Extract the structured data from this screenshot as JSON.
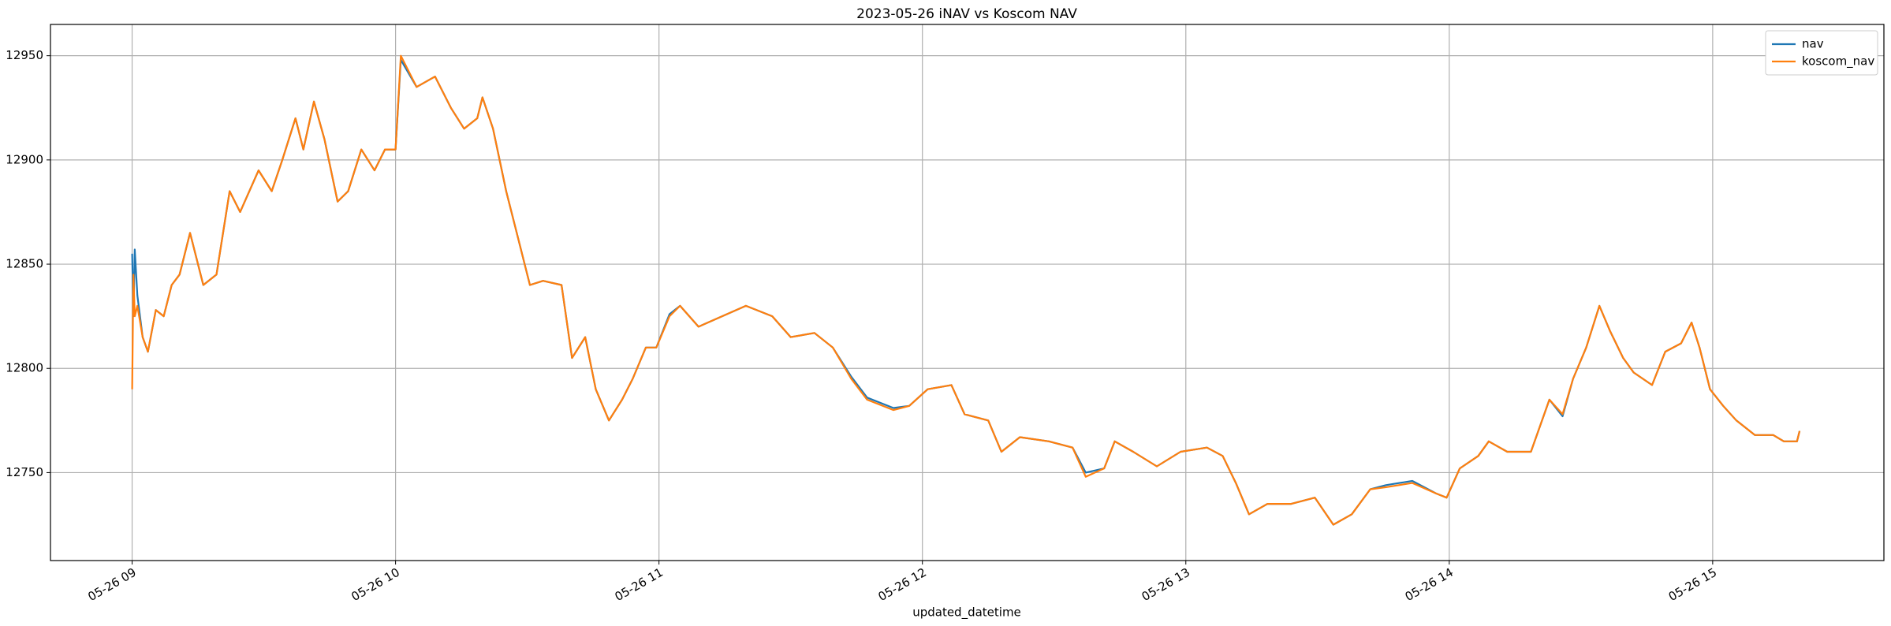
{
  "chart_data": {
    "type": "line",
    "title": "2023-05-26 iNAV vs Koscom NAV",
    "x_label": "updated_datetime",
    "x": [
      9.0,
      9.005,
      9.01,
      9.02,
      9.04,
      9.06,
      9.09,
      9.12,
      9.15,
      9.18,
      9.22,
      9.27,
      9.32,
      9.37,
      9.41,
      9.48,
      9.53,
      9.57,
      9.62,
      9.65,
      9.69,
      9.73,
      9.78,
      9.82,
      9.87,
      9.92,
      9.96,
      10.0,
      10.02,
      10.08,
      10.15,
      10.21,
      10.26,
      10.31,
      10.33,
      10.37,
      10.42,
      10.46,
      10.51,
      10.56,
      10.63,
      10.67,
      10.72,
      10.76,
      10.81,
      10.86,
      10.9,
      10.95,
      10.99,
      11.04,
      11.08,
      11.15,
      11.24,
      11.33,
      11.43,
      11.5,
      11.59,
      11.66,
      11.73,
      11.79,
      11.89,
      11.95,
      12.02,
      12.11,
      12.16,
      12.25,
      12.3,
      12.37,
      12.48,
      12.57,
      12.62,
      12.69,
      12.73,
      12.8,
      12.89,
      12.98,
      13.08,
      13.14,
      13.19,
      13.24,
      13.31,
      13.4,
      13.49,
      13.56,
      13.63,
      13.7,
      13.76,
      13.86,
      13.95,
      13.99,
      14.04,
      14.11,
      14.15,
      14.22,
      14.31,
      14.38,
      14.43,
      14.47,
      14.52,
      14.57,
      14.61,
      14.66,
      14.7,
      14.77,
      14.82,
      14.88,
      14.92,
      14.95,
      14.99,
      15.04,
      15.09,
      15.16,
      15.23,
      15.27,
      15.32,
      15.33
    ],
    "series": [
      {
        "name": "nav",
        "color": "#1f77b4",
        "values": [
          12855,
          12825,
          12857,
          12835,
          12815,
          12808,
          12828,
          12825,
          12840,
          12845,
          12865,
          12840,
          12845,
          12885,
          12875,
          12895,
          12885,
          12900,
          12920,
          12905,
          12928,
          12910,
          12880,
          12885,
          12905,
          12895,
          12905,
          12905,
          12948,
          12935,
          12940,
          12925,
          12915,
          12920,
          12930,
          12915,
          12885,
          12865,
          12840,
          12842,
          12840,
          12805,
          12815,
          12790,
          12775,
          12785,
          12795,
          12810,
          12810,
          12826,
          12830,
          12820,
          12825,
          12830,
          12825,
          12815,
          12817,
          12810,
          12796,
          12786,
          12781,
          12782,
          12790,
          12792,
          12778,
          12775,
          12760,
          12767,
          12765,
          12762,
          12750,
          12752,
          12765,
          12760,
          12753,
          12760,
          12762,
          12758,
          12745,
          12730,
          12735,
          12735,
          12738,
          12725,
          12730,
          12742,
          12744,
          12746,
          12740,
          12738,
          12752,
          12758,
          12765,
          12760,
          12760,
          12785,
          12777,
          12795,
          12810,
          12830,
          12818,
          12805,
          12798,
          12792,
          12808,
          12812,
          12822,
          12810,
          12790,
          12782,
          12775,
          12768,
          12768,
          12765,
          12765,
          12770
        ]
      },
      {
        "name": "koscom_nav",
        "color": "#ff7f0e",
        "values": [
          12790,
          12845,
          12825,
          12830,
          12815,
          12808,
          12828,
          12825,
          12840,
          12845,
          12865,
          12840,
          12845,
          12885,
          12875,
          12895,
          12885,
          12900,
          12920,
          12905,
          12928,
          12910,
          12880,
          12885,
          12905,
          12895,
          12905,
          12905,
          12950,
          12935,
          12940,
          12925,
          12915,
          12920,
          12930,
          12915,
          12885,
          12865,
          12840,
          12842,
          12840,
          12805,
          12815,
          12790,
          12775,
          12785,
          12795,
          12810,
          12810,
          12825,
          12830,
          12820,
          12825,
          12830,
          12825,
          12815,
          12817,
          12810,
          12795,
          12785,
          12780,
          12782,
          12790,
          12792,
          12778,
          12775,
          12760,
          12767,
          12765,
          12762,
          12748,
          12752,
          12765,
          12760,
          12753,
          12760,
          12762,
          12758,
          12745,
          12730,
          12735,
          12735,
          12738,
          12725,
          12730,
          12742,
          12743,
          12745,
          12740,
          12738,
          12752,
          12758,
          12765,
          12760,
          12760,
          12785,
          12778,
          12795,
          12810,
          12830,
          12818,
          12805,
          12798,
          12792,
          12808,
          12812,
          12822,
          12810,
          12790,
          12782,
          12775,
          12768,
          12768,
          12765,
          12765,
          12770
        ]
      }
    ],
    "xlim": [
      8.69,
      15.65
    ],
    "ylim": [
      12707.8,
      12965
    ],
    "xticks": [
      {
        "value": 9,
        "label": "05-26 09"
      },
      {
        "value": 10,
        "label": "05-26 10"
      },
      {
        "value": 11,
        "label": "05-26 11"
      },
      {
        "value": 12,
        "label": "05-26 12"
      },
      {
        "value": 13,
        "label": "05-26 13"
      },
      {
        "value": 14,
        "label": "05-26 14"
      },
      {
        "value": 15,
        "label": "05-26 15"
      }
    ],
    "yticks": [
      12750,
      12800,
      12850,
      12900,
      12950
    ],
    "grid": true,
    "legend": "upper right"
  }
}
